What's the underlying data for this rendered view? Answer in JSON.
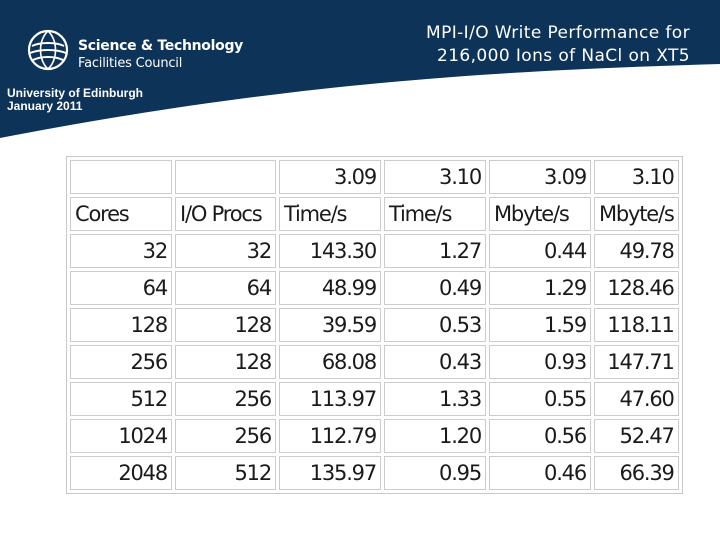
{
  "banner": {
    "color": "#0d3358",
    "logo_icon": "stfc-globe-icon",
    "logo_line1": "Science & Technology",
    "logo_line2": "Facilities Council",
    "title_line1": "MPI-I/O Write Performance for",
    "title_line2": "216,000 Ions of NaCl on XT5",
    "institution": "University of Edinburgh",
    "date": "January 2011"
  },
  "table": {
    "version_row": [
      "",
      "",
      "3.09",
      "3.10",
      "3.09",
      "3.10"
    ],
    "headers": [
      "Cores",
      "I/O Procs",
      "Time/s",
      "Time/s",
      "Mbyte/s",
      "Mbyte/s"
    ],
    "rows": [
      [
        "32",
        "32",
        "143.30",
        "1.27",
        "0.44",
        "49.78"
      ],
      [
        "64",
        "64",
        "48.99",
        "0.49",
        "1.29",
        "128.46"
      ],
      [
        "128",
        "128",
        "39.59",
        "0.53",
        "1.59",
        "118.11"
      ],
      [
        "256",
        "128",
        "68.08",
        "0.43",
        "0.93",
        "147.71"
      ],
      [
        "512",
        "256",
        "113.97",
        "1.33",
        "0.55",
        "47.60"
      ],
      [
        "1024",
        "256",
        "112.79",
        "1.20",
        "0.56",
        "52.47"
      ],
      [
        "2048",
        "512",
        "135.97",
        "0.95",
        "0.46",
        "66.39"
      ]
    ]
  }
}
